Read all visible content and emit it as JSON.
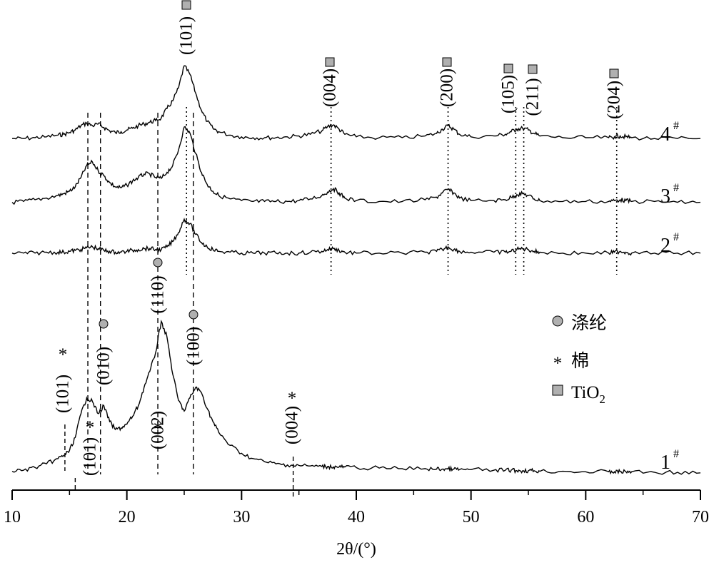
{
  "chart_data": {
    "type": "line",
    "xlabel": "2θ/(°)",
    "xlim": [
      10,
      70
    ],
    "xticks": [
      "10",
      "20",
      "30",
      "40",
      "50",
      "60",
      "70"
    ],
    "yaxis": "none",
    "x": [
      10,
      11,
      12,
      13,
      14,
      14.5,
      15,
      15.5,
      16,
      16.5,
      17,
      17.5,
      18,
      18.5,
      19,
      19.5,
      20,
      20.5,
      21,
      21.5,
      22,
      22.5,
      23,
      23.5,
      24,
      24.5,
      25,
      25.5,
      26,
      26.5,
      27,
      27.5,
      28,
      29,
      30,
      31,
      32,
      33,
      34,
      35,
      36,
      37,
      37.5,
      38,
      38.5,
      39,
      40,
      42,
      44,
      46,
      47,
      47.5,
      48,
      48.5,
      49,
      50,
      52,
      53,
      53.5,
      54,
      54.5,
      55,
      55.5,
      56,
      58,
      60,
      62,
      62.5,
      63,
      63.5,
      64,
      66,
      68,
      70
    ],
    "series": [
      {
        "name": "4#",
        "sample": "4",
        "sup": "#",
        "values": [
          9,
          9,
          10,
          11,
          13,
          14,
          16,
          19,
          24,
          27,
          24,
          26,
          22,
          18,
          16,
          17,
          19,
          21,
          24,
          26,
          28,
          30,
          33,
          44,
          53,
          68,
          94,
          84,
          62,
          42,
          29,
          21,
          17,
          13,
          11,
          10,
          10,
          10,
          11,
          12,
          14,
          18,
          23,
          25,
          20,
          14,
          11,
          10,
          10,
          12,
          15,
          20,
          24,
          20,
          14,
          11,
          12,
          14,
          17,
          20,
          21,
          19,
          15,
          12,
          10,
          10,
          10,
          11,
          12,
          11,
          10,
          9,
          9,
          9
        ]
      },
      {
        "name": "3#",
        "sample": "3",
        "sup": "#",
        "values": [
          7,
          8,
          10,
          12,
          15,
          17,
          20,
          25,
          36,
          50,
          54,
          44,
          38,
          30,
          25,
          24,
          27,
          32,
          36,
          40,
          40,
          36,
          35,
          42,
          50,
          68,
          95,
          88,
          64,
          42,
          28,
          20,
          15,
          11,
          9,
          8,
          8,
          8,
          8,
          9,
          11,
          15,
          19,
          23,
          18,
          12,
          9,
          8,
          8,
          10,
          13,
          18,
          22,
          18,
          12,
          9,
          9,
          10,
          13,
          16,
          17,
          15,
          11,
          9,
          8,
          8,
          8,
          9,
          10,
          9,
          8,
          8,
          7,
          7
        ]
      },
      {
        "name": "2#",
        "sample": "2",
        "sup": "#",
        "values": [
          5,
          5,
          5,
          6,
          6,
          6,
          7,
          8,
          9,
          11,
          12,
          10,
          8,
          7,
          6,
          6,
          7,
          8,
          9,
          10,
          10,
          9,
          9,
          12,
          18,
          28,
          43,
          38,
          26,
          17,
          12,
          9,
          7,
          6,
          5,
          5,
          5,
          5,
          5,
          5,
          6,
          7,
          9,
          10,
          8,
          6,
          5,
          5,
          5,
          6,
          7,
          9,
          12,
          9,
          7,
          6,
          6,
          6,
          7,
          9,
          10,
          9,
          7,
          6,
          5,
          5,
          5,
          6,
          7,
          6,
          5,
          5,
          5,
          5
        ]
      },
      {
        "name": "1#",
        "sample": "1",
        "sup": "#",
        "values": [
          6,
          8,
          13,
          20,
          30,
          36,
          45,
          70,
          115,
          145,
          138,
          115,
          130,
          100,
          85,
          88,
          95,
          110,
          130,
          165,
          195,
          230,
          290,
          260,
          190,
          140,
          120,
          145,
          165,
          155,
          125,
          100,
          80,
          55,
          40,
          30,
          24,
          20,
          18,
          17,
          16,
          15,
          15,
          14,
          14,
          14,
          13,
          12,
          11,
          11,
          10,
          10,
          10,
          10,
          9,
          9,
          8,
          8,
          8,
          7,
          7,
          7,
          7,
          6,
          6,
          5,
          5,
          5,
          5,
          5,
          5,
          4,
          4,
          3
        ]
      }
    ],
    "reflections": [
      {
        "label": "(101)*",
        "x": 14.6,
        "phase": "棉"
      },
      {
        "label": "(101)",
        "x": 15.3,
        "phase": "棉"
      },
      {
        "label": "(010)",
        "x": 17.7,
        "phase": "涤纶"
      },
      {
        "label": "(110)",
        "x": 22.7,
        "phase": "涤纶"
      },
      {
        "label": "(002)*",
        "x": 22.7,
        "phase": "棉"
      },
      {
        "label": "(100)",
        "x": 25.8,
        "phase": "涤纶"
      },
      {
        "label": "(004)*",
        "x": 34.5,
        "phase": "棉"
      },
      {
        "label": "(101)",
        "x": 25.2,
        "phase": "TiO2"
      },
      {
        "label": "(004)",
        "x": 37.8,
        "phase": "TiO2"
      },
      {
        "label": "(200)",
        "x": 48.0,
        "phase": "TiO2"
      },
      {
        "label": "(105)",
        "x": 53.9,
        "phase": "TiO2"
      },
      {
        "label": "(211)",
        "x": 55.1,
        "phase": "TiO2"
      },
      {
        "label": "(204)",
        "x": 62.7,
        "phase": "TiO2"
      }
    ],
    "legend": [
      {
        "marker": "circle",
        "label": "涤纶"
      },
      {
        "marker": "asterisk",
        "label": "棉"
      },
      {
        "marker": "square",
        "label": "TiO",
        "sub": "2"
      }
    ],
    "legend_position": "center-right",
    "grid": false,
    "colors": {
      "line": "#000000",
      "marker_fill": "#b0b0b0"
    }
  }
}
